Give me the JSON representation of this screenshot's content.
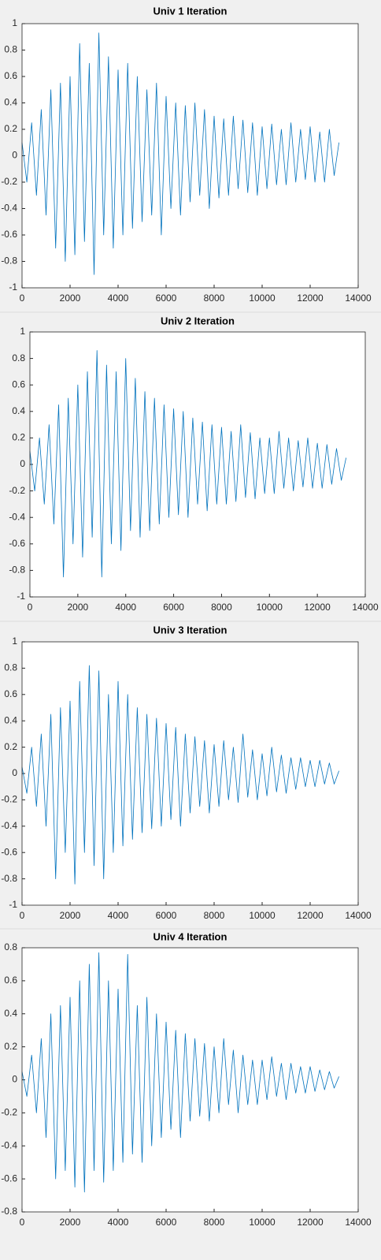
{
  "chart_data": [
    {
      "type": "line",
      "title": "Univ 1 Iteration",
      "color": "#0072bd",
      "x": [
        0,
        200,
        400,
        600,
        800,
        1000,
        1200,
        1400,
        1600,
        1800,
        2000,
        2200,
        2400,
        2600,
        2800,
        3000,
        3200,
        3400,
        3600,
        3800,
        4000,
        4200,
        4400,
        4600,
        4800,
        5000,
        5200,
        5400,
        5600,
        5800,
        6000,
        6200,
        6400,
        6600,
        6800,
        7000,
        7200,
        7400,
        7600,
        7800,
        8000,
        8200,
        8400,
        8600,
        8800,
        9000,
        9200,
        9400,
        9600,
        9800,
        10000,
        10200,
        10400,
        10600,
        10800,
        11000,
        11200,
        11400,
        11600,
        11800,
        12000,
        12200,
        12400,
        12600,
        12800,
        13000,
        13200
      ],
      "values": [
        0.1,
        -0.2,
        0.25,
        -0.3,
        0.35,
        -0.45,
        0.5,
        -0.7,
        0.55,
        -0.8,
        0.6,
        -0.75,
        0.85,
        -0.65,
        0.7,
        -0.9,
        0.93,
        -0.6,
        0.75,
        -0.7,
        0.65,
        -0.6,
        0.7,
        -0.55,
        0.6,
        -0.5,
        0.5,
        -0.45,
        0.55,
        -0.6,
        0.45,
        -0.4,
        0.4,
        -0.45,
        0.38,
        -0.35,
        0.4,
        -0.3,
        0.35,
        -0.4,
        0.3,
        -0.32,
        0.28,
        -0.3,
        0.3,
        -0.25,
        0.27,
        -0.28,
        0.25,
        -0.3,
        0.22,
        -0.25,
        0.24,
        -0.22,
        0.2,
        -0.22,
        0.25,
        -0.2,
        0.2,
        -0.18,
        0.22,
        -0.2,
        0.18,
        -0.2,
        0.2,
        -0.15,
        0.1
      ],
      "xlim": [
        0,
        14000
      ],
      "xticks": [
        0,
        2000,
        4000,
        6000,
        8000,
        10000,
        12000,
        14000
      ],
      "ylim": [
        -1,
        1
      ],
      "yticks": [
        -1,
        -0.8,
        -0.6,
        -0.4,
        -0.2,
        0,
        0.2,
        0.4,
        0.6,
        0.8,
        1
      ],
      "grid": false
    },
    {
      "type": "line",
      "title": "Univ 2 Iteration",
      "color": "#0072bd",
      "x": [
        0,
        200,
        400,
        600,
        800,
        1000,
        1200,
        1400,
        1600,
        1800,
        2000,
        2200,
        2400,
        2600,
        2800,
        3000,
        3200,
        3400,
        3600,
        3800,
        4000,
        4200,
        4400,
        4600,
        4800,
        5000,
        5200,
        5400,
        5600,
        5800,
        6000,
        6200,
        6400,
        6600,
        6800,
        7000,
        7200,
        7400,
        7600,
        7800,
        8000,
        8200,
        8400,
        8600,
        8800,
        9000,
        9200,
        9400,
        9600,
        9800,
        10000,
        10200,
        10400,
        10600,
        10800,
        11000,
        11200,
        11400,
        11600,
        11800,
        12000,
        12200,
        12400,
        12600,
        12800,
        13000,
        13200
      ],
      "values": [
        0.1,
        -0.2,
        0.2,
        -0.3,
        0.3,
        -0.45,
        0.45,
        -0.85,
        0.5,
        -0.6,
        0.6,
        -0.7,
        0.7,
        -0.55,
        0.86,
        -0.85,
        0.75,
        -0.6,
        0.7,
        -0.65,
        0.8,
        -0.5,
        0.65,
        -0.55,
        0.55,
        -0.5,
        0.5,
        -0.45,
        0.45,
        -0.4,
        0.42,
        -0.38,
        0.4,
        -0.4,
        0.35,
        -0.3,
        0.32,
        -0.35,
        0.3,
        -0.3,
        0.28,
        -0.3,
        0.25,
        -0.28,
        0.3,
        -0.25,
        0.24,
        -0.26,
        0.2,
        -0.22,
        0.2,
        -0.22,
        0.25,
        -0.18,
        0.2,
        -0.2,
        0.18,
        -0.17,
        0.2,
        -0.18,
        0.16,
        -0.18,
        0.15,
        -0.15,
        0.12,
        -0.12,
        0.05
      ],
      "xlim": [
        0,
        14000
      ],
      "xticks": [
        0,
        2000,
        4000,
        6000,
        8000,
        10000,
        12000,
        14000
      ],
      "ylim": [
        -1,
        1
      ],
      "yticks": [
        -1,
        -0.8,
        -0.6,
        -0.4,
        -0.2,
        0,
        0.2,
        0.4,
        0.6,
        0.8,
        1
      ],
      "grid": false
    },
    {
      "type": "line",
      "title": "Univ 3 Iteration",
      "color": "#0072bd",
      "x": [
        0,
        200,
        400,
        600,
        800,
        1000,
        1200,
        1400,
        1600,
        1800,
        2000,
        2200,
        2400,
        2600,
        2800,
        3000,
        3200,
        3400,
        3600,
        3800,
        4000,
        4200,
        4400,
        4600,
        4800,
        5000,
        5200,
        5400,
        5600,
        5800,
        6000,
        6200,
        6400,
        6600,
        6800,
        7000,
        7200,
        7400,
        7600,
        7800,
        8000,
        8200,
        8400,
        8600,
        8800,
        9000,
        9200,
        9400,
        9600,
        9800,
        10000,
        10200,
        10400,
        10600,
        10800,
        11000,
        11200,
        11400,
        11600,
        11800,
        12000,
        12200,
        12400,
        12600,
        12800,
        13000,
        13200
      ],
      "values": [
        0.05,
        -0.15,
        0.2,
        -0.25,
        0.3,
        -0.4,
        0.45,
        -0.8,
        0.5,
        -0.6,
        0.55,
        -0.84,
        0.7,
        -0.6,
        0.82,
        -0.7,
        0.78,
        -0.8,
        0.6,
        -0.6,
        0.7,
        -0.55,
        0.6,
        -0.5,
        0.5,
        -0.45,
        0.45,
        -0.42,
        0.42,
        -0.4,
        0.38,
        -0.35,
        0.35,
        -0.4,
        0.3,
        -0.3,
        0.28,
        -0.25,
        0.25,
        -0.3,
        0.22,
        -0.25,
        0.25,
        -0.2,
        0.2,
        -0.22,
        0.3,
        -0.18,
        0.18,
        -0.2,
        0.15,
        -0.17,
        0.2,
        -0.14,
        0.14,
        -0.15,
        0.12,
        -0.12,
        0.12,
        -0.1,
        0.1,
        -0.1,
        0.1,
        -0.08,
        0.08,
        -0.08,
        0.02
      ],
      "xlim": [
        0,
        14000
      ],
      "xticks": [
        0,
        2000,
        4000,
        6000,
        8000,
        10000,
        12000,
        14000
      ],
      "ylim": [
        -1,
        1
      ],
      "yticks": [
        -1,
        -0.8,
        -0.6,
        -0.4,
        -0.2,
        0,
        0.2,
        0.4,
        0.6,
        0.8,
        1
      ],
      "grid": false
    },
    {
      "type": "line",
      "title": "Univ 4 Iteration",
      "color": "#0072bd",
      "x": [
        0,
        200,
        400,
        600,
        800,
        1000,
        1200,
        1400,
        1600,
        1800,
        2000,
        2200,
        2400,
        2600,
        2800,
        3000,
        3200,
        3400,
        3600,
        3800,
        4000,
        4200,
        4400,
        4600,
        4800,
        5000,
        5200,
        5400,
        5600,
        5800,
        6000,
        6200,
        6400,
        6600,
        6800,
        7000,
        7200,
        7400,
        7600,
        7800,
        8000,
        8200,
        8400,
        8600,
        8800,
        9000,
        9200,
        9400,
        9600,
        9800,
        10000,
        10200,
        10400,
        10600,
        10800,
        11000,
        11200,
        11400,
        11600,
        11800,
        12000,
        12200,
        12400,
        12600,
        12800,
        13000,
        13200
      ],
      "values": [
        0.05,
        -0.1,
        0.15,
        -0.2,
        0.25,
        -0.35,
        0.4,
        -0.6,
        0.45,
        -0.55,
        0.5,
        -0.65,
        0.6,
        -0.68,
        0.7,
        -0.55,
        0.77,
        -0.62,
        0.6,
        -0.55,
        0.55,
        -0.5,
        0.76,
        -0.45,
        0.45,
        -0.5,
        0.5,
        -0.4,
        0.4,
        -0.35,
        0.35,
        -0.3,
        0.3,
        -0.35,
        0.28,
        -0.25,
        0.25,
        -0.22,
        0.22,
        -0.25,
        0.2,
        -0.2,
        0.25,
        -0.15,
        0.18,
        -0.2,
        0.15,
        -0.15,
        0.12,
        -0.15,
        0.12,
        -0.12,
        0.14,
        -0.1,
        0.1,
        -0.12,
        0.1,
        -0.08,
        0.08,
        -0.08,
        0.08,
        -0.07,
        0.06,
        -0.06,
        0.05,
        -0.05,
        0.02
      ],
      "xlim": [
        0,
        14000
      ],
      "xticks": [
        0,
        2000,
        4000,
        6000,
        8000,
        10000,
        12000,
        14000
      ],
      "ylim": [
        -0.8,
        0.8
      ],
      "yticks": [
        -0.8,
        -0.6,
        -0.4,
        -0.2,
        0,
        0.2,
        0.4,
        0.6,
        0.8
      ],
      "grid": false
    }
  ]
}
